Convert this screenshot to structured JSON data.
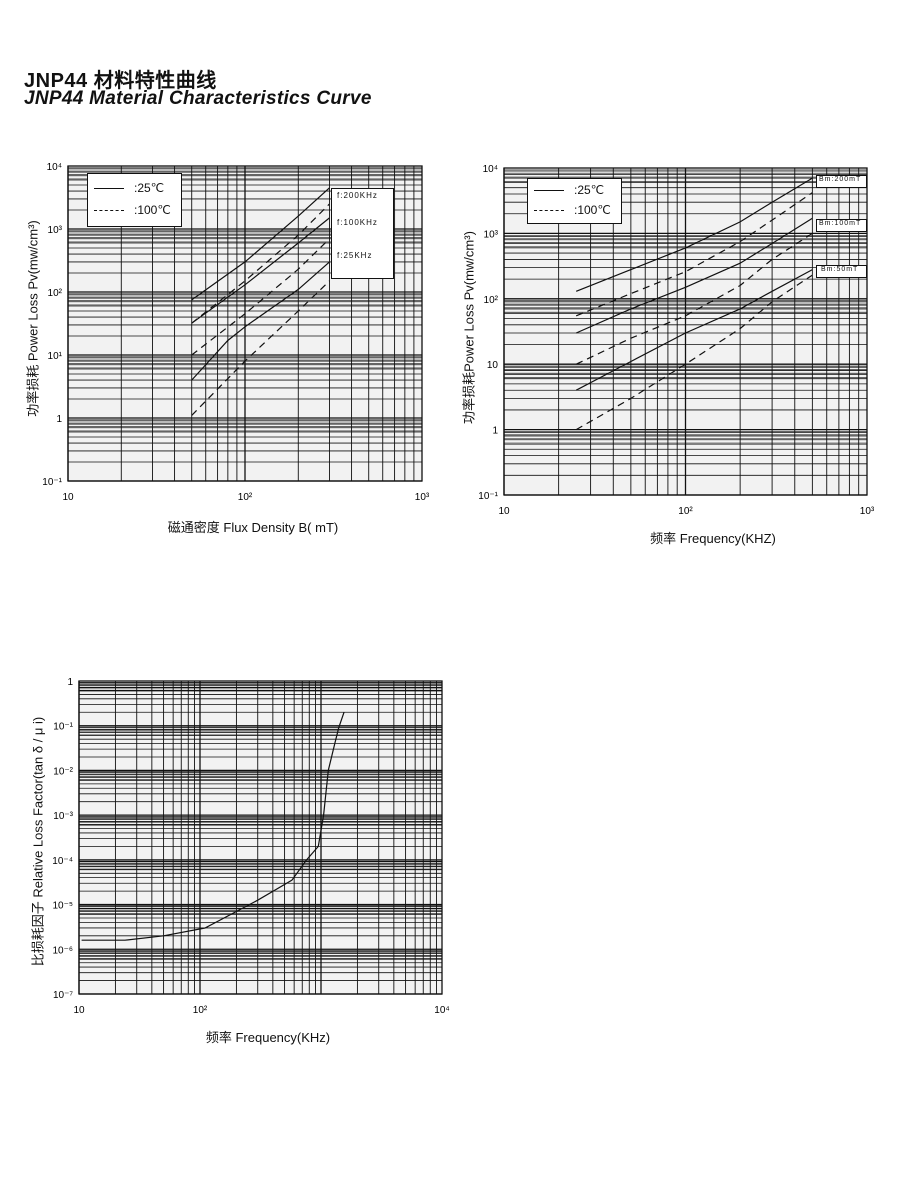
{
  "header": {
    "title_cn": "JNP44 材料特性曲线",
    "title_en": "JNP44  Material Characteristics Curve"
  },
  "chart_data": [
    {
      "type": "line",
      "title": "",
      "xlabel": "磁通密度  Flux Density B( mT)",
      "ylabel": "功率损耗  Power Loss Pv(mw/cm³)",
      "xscale": "log",
      "yscale": "log",
      "xlim": [
        10,
        1000
      ],
      "ylim": [
        0.1,
        10000
      ],
      "grid": true,
      "xticks": [
        {
          "v": 10,
          "label": "10"
        },
        {
          "v": 100,
          "label": "10²"
        },
        {
          "v": 1000,
          "label": "10³"
        }
      ],
      "yticks": [
        {
          "v": 0.1,
          "label": "10⁻¹"
        },
        {
          "v": 1,
          "label": "1"
        },
        {
          "v": 10,
          "label": "10¹"
        },
        {
          "v": 100,
          "label": "10²"
        },
        {
          "v": 1000,
          "label": "10³"
        },
        {
          "v": 10000,
          "label": "10⁴"
        }
      ],
      "legend": {
        "placement": "top-left",
        "entries": [
          {
            "label": ":25℃",
            "style": "solid"
          },
          {
            "label": ":100℃",
            "style": "dashed"
          }
        ]
      },
      "curve_labels": [
        "f:200KHz",
        "f:100KHz",
        "f:25KHz"
      ],
      "series": [
        {
          "name": "f:200KHz 25℃",
          "style": "solid",
          "x": [
            50,
            100,
            200,
            300
          ],
          "y": [
            75,
            300,
            1600,
            4500
          ]
        },
        {
          "name": "f:200KHz 100℃",
          "style": "dashed",
          "x": [
            50,
            100,
            200,
            300
          ],
          "y": [
            32,
            150,
            800,
            2500
          ]
        },
        {
          "name": "f:100KHz 25℃",
          "style": "solid",
          "x": [
            50,
            100,
            200,
            300
          ],
          "y": [
            32,
            130,
            600,
            1500
          ]
        },
        {
          "name": "f:100KHz 100℃",
          "style": "dashed",
          "x": [
            50,
            100,
            200,
            300
          ],
          "y": [
            10,
            45,
            230,
            700
          ]
        },
        {
          "name": "f:25KHz 25℃",
          "style": "solid",
          "x": [
            50,
            80,
            100,
            200,
            300
          ],
          "y": [
            4,
            17,
            28,
            110,
            300
          ]
        },
        {
          "name": "f:25KHz 100℃",
          "style": "dashed",
          "x": [
            50,
            100,
            200,
            300
          ],
          "y": [
            1.1,
            8,
            50,
            150
          ]
        }
      ]
    },
    {
      "type": "line",
      "title": "",
      "xlabel": "频率   Frequency(KHZ)",
      "ylabel": "功率损耗Power Loss Pv(mw/cm³)",
      "xscale": "log",
      "yscale": "log",
      "xlim": [
        10,
        1000
      ],
      "ylim": [
        0.1,
        10000
      ],
      "grid": true,
      "xticks": [
        {
          "v": 10,
          "label": "10"
        },
        {
          "v": 100,
          "label": "10²"
        },
        {
          "v": 1000,
          "label": "10³"
        }
      ],
      "yticks": [
        {
          "v": 0.1,
          "label": "10⁻¹"
        },
        {
          "v": 1,
          "label": "1"
        },
        {
          "v": 10,
          "label": "10"
        },
        {
          "v": 100,
          "label": "10²"
        },
        {
          "v": 1000,
          "label": "10³"
        },
        {
          "v": 10000,
          "label": "10⁴"
        }
      ],
      "legend": {
        "placement": "top-left",
        "entries": [
          {
            "label": ":25℃",
            "style": "solid"
          },
          {
            "label": ":100℃",
            "style": "dashed"
          }
        ]
      },
      "curve_labels": [
        "Bm:200mT",
        "Bm:100mT",
        "Bm:50mT"
      ],
      "series": [
        {
          "name": "Bm:200mT 25℃",
          "style": "solid",
          "x": [
            25,
            50,
            100,
            200,
            300,
            500
          ],
          "y": [
            130,
            280,
            600,
            1500,
            3000,
            7000
          ]
        },
        {
          "name": "Bm:200mT 100℃",
          "style": "dashed",
          "x": [
            25,
            50,
            100,
            200,
            300,
            500
          ],
          "y": [
            55,
            120,
            260,
            750,
            1600,
            4200
          ]
        },
        {
          "name": "Bm:100mT 25℃",
          "style": "solid",
          "x": [
            25,
            50,
            100,
            200,
            300,
            500
          ],
          "y": [
            30,
            70,
            150,
            350,
            700,
            1700
          ]
        },
        {
          "name": "Bm:100mT 100℃",
          "style": "dashed",
          "x": [
            25,
            50,
            100,
            200,
            300,
            500
          ],
          "y": [
            10,
            25,
            55,
            160,
            400,
            1000
          ]
        },
        {
          "name": "Bm:50mT 25℃",
          "style": "solid",
          "x": [
            25,
            50,
            100,
            200,
            300,
            500
          ],
          "y": [
            4,
            11,
            30,
            70,
            130,
            280
          ]
        },
        {
          "name": "Bm:50mT 100℃",
          "style": "dashed",
          "x": [
            25,
            50,
            100,
            200,
            300,
            500
          ],
          "y": [
            1,
            3,
            10,
            35,
            90,
            230
          ]
        }
      ]
    },
    {
      "type": "line",
      "title": "",
      "xlabel": "频率 Frequency(KHz)",
      "ylabel": "比损耗因子  Relative Loss Factor(tan δ / μ i)",
      "xscale": "log",
      "yscale": "log",
      "xlim": [
        10,
        10000
      ],
      "ylim": [
        1e-07,
        1
      ],
      "grid": true,
      "xticks": [
        {
          "v": 10,
          "label": "10"
        },
        {
          "v": 100,
          "label": "10²"
        },
        {
          "v": 10000,
          "label": "10⁴"
        }
      ],
      "yticks": [
        {
          "v": 1e-07,
          "label": "10⁻⁷"
        },
        {
          "v": 1e-06,
          "label": "10⁻⁶"
        },
        {
          "v": 1e-05,
          "label": "10⁻⁵"
        },
        {
          "v": 0.0001,
          "label": "10⁻⁴"
        },
        {
          "v": 0.001,
          "label": "10⁻³"
        },
        {
          "v": 0.01,
          "label": "10⁻²"
        },
        {
          "v": 0.1,
          "label": "10⁻¹"
        },
        {
          "v": 1,
          "label": "1"
        }
      ],
      "series": [
        {
          "name": "tanδ/μi",
          "style": "solid",
          "x": [
            10.5,
            24,
            50,
            110,
            300,
            575,
            760,
            950,
            1050,
            1150,
            1300,
            1400,
            1550
          ],
          "y": [
            1.6e-06,
            1.6e-06,
            2e-06,
            3e-06,
            1.25e-05,
            3.5e-05,
            0.0001,
            0.0002,
            0.001,
            0.01,
            0.04,
            0.09,
            0.2
          ]
        }
      ]
    }
  ]
}
